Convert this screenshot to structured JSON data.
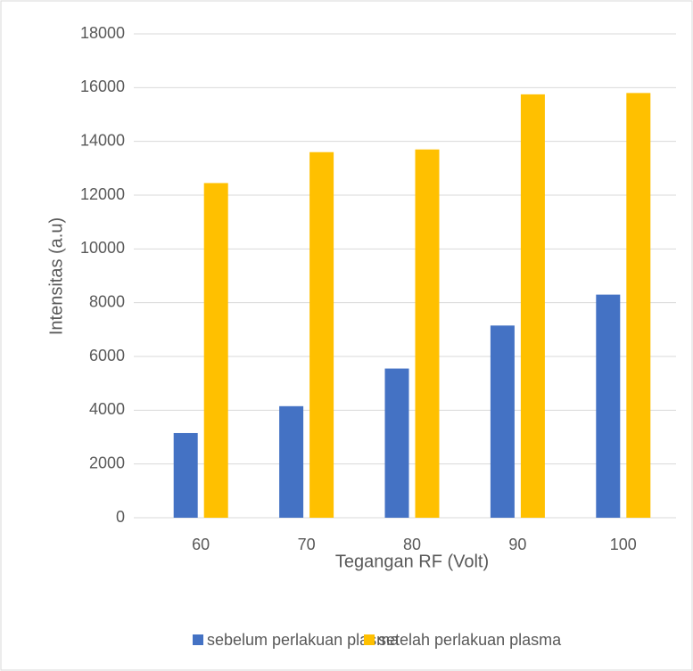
{
  "chart_data": {
    "type": "bar",
    "x_label": "Tegangan RF (Volt)",
    "y_label": "Intensitas (a.u)",
    "categories": [
      "60",
      "70",
      "80",
      "90",
      "100"
    ],
    "series": [
      {
        "name": "sebelum perlakuan plasma",
        "color": "#4472c4",
        "values": [
          3150,
          4150,
          5550,
          7150,
          8300
        ]
      },
      {
        "name": "setelah perlakuan plasma",
        "color": "#ffc000",
        "values": [
          12450,
          13600,
          13700,
          15750,
          15800
        ]
      }
    ],
    "ylim": [
      0,
      18000
    ],
    "yticks": [
      0,
      2000,
      4000,
      6000,
      8000,
      10000,
      12000,
      14000,
      16000,
      18000
    ],
    "grid": true,
    "legend": "bottom"
  }
}
